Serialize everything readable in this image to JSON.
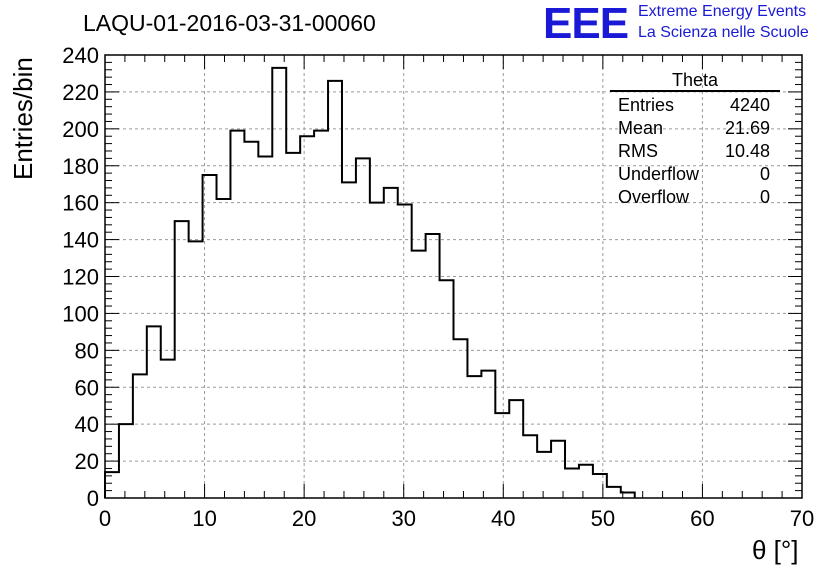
{
  "title": "LAQU-01-2016-03-31-00060",
  "logo": {
    "mark": "EEE",
    "line1": "Extreme Energy Events",
    "line2": "La Scienza nelle Scuole"
  },
  "stats": {
    "title": "Theta",
    "rows": [
      {
        "label": "Entries",
        "value": "4240"
      },
      {
        "label": "Mean",
        "value": "21.69"
      },
      {
        "label": "RMS",
        "value": "10.48"
      },
      {
        "label": "Underflow",
        "value": "0"
      },
      {
        "label": "Overflow",
        "value": "0"
      }
    ]
  },
  "colors": {
    "logo": "#1a1ad6",
    "grid": "#9a9a9a",
    "line": "#000000"
  },
  "chart_data": {
    "type": "histogram",
    "title": "LAQU-01-2016-03-31-00060",
    "xlabel": "θ [°]",
    "ylabel": "Entries/bin",
    "xlim": [
      0,
      70
    ],
    "ylim": [
      0,
      240
    ],
    "bin_width": 1.4,
    "grid": true,
    "x_ticks": [
      0,
      10,
      20,
      30,
      40,
      50,
      60,
      70
    ],
    "y_ticks": [
      0,
      20,
      40,
      60,
      80,
      100,
      120,
      140,
      160,
      180,
      200,
      220,
      240
    ],
    "bin_edges": [
      0,
      1.4,
      2.8,
      4.2,
      5.6,
      7.0,
      8.4,
      9.8,
      11.2,
      12.6,
      14.0,
      15.4,
      16.8,
      18.2,
      19.6,
      21.0,
      22.4,
      23.8,
      25.2,
      26.6,
      28.0,
      29.4,
      30.8,
      32.2,
      33.6,
      35.0,
      36.4,
      37.8,
      39.2,
      40.6,
      42.0,
      43.4,
      44.8,
      46.2,
      47.6,
      49.0,
      50.4,
      51.8,
      53.2
    ],
    "values": [
      14,
      40,
      67,
      93,
      75,
      150,
      139,
      175,
      162,
      199,
      193,
      185,
      233,
      187,
      196,
      199,
      226,
      171,
      184,
      160,
      168,
      159,
      134,
      143,
      118,
      86,
      66,
      69,
      46,
      53,
      34,
      25,
      31,
      16,
      18,
      13,
      6,
      3,
      0
    ]
  }
}
